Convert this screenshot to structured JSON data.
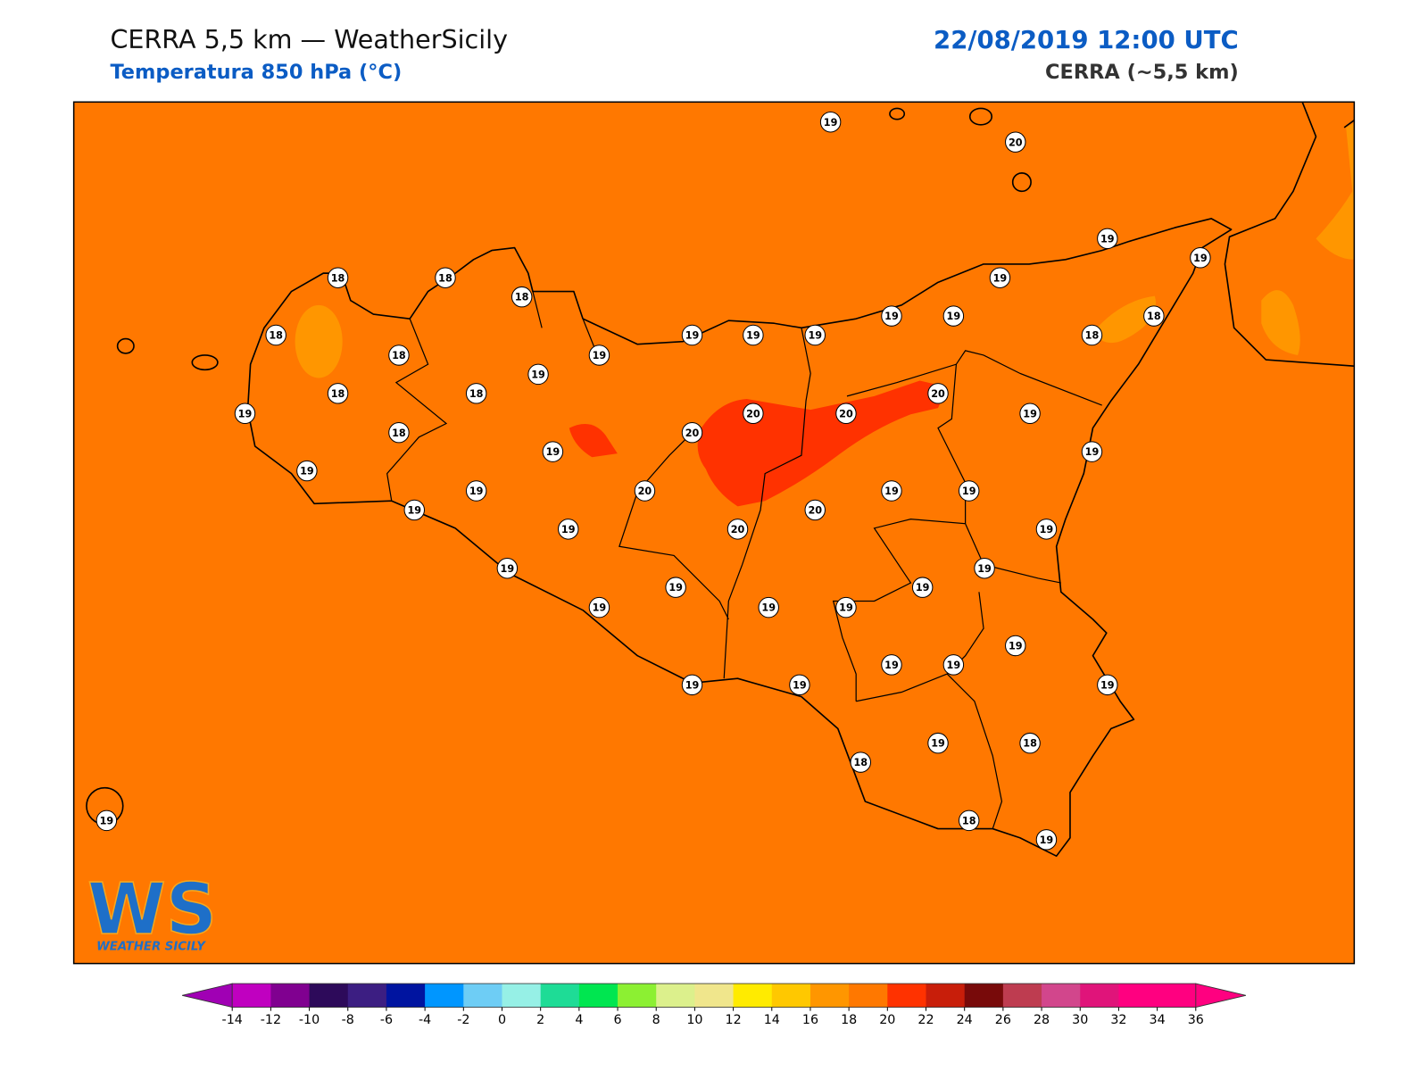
{
  "header": {
    "title": "CERRA 5,5 km — WeatherSicily",
    "subtitle": "Temperatura 850 hPa (°C)",
    "datetime": "22/08/2019 12:00 UTC",
    "model": "CERRA (~5,5 km)"
  },
  "stations": [
    19,
    20,
    19,
    19,
    18,
    18,
    18,
    19,
    19,
    19,
    18,
    18,
    18,
    18,
    19,
    19,
    19,
    19,
    19,
    18,
    18,
    19,
    20,
    20,
    20,
    19,
    18,
    20,
    19,
    19,
    19,
    19,
    20,
    19,
    19,
    20,
    19,
    19,
    20,
    19,
    19,
    19,
    19,
    19,
    19,
    19,
    19,
    19,
    19,
    19,
    19,
    19,
    19,
    19,
    18,
    18,
    18,
    19,
    19
  ],
  "colorbar": {
    "ticks": [
      -14,
      -12,
      -10,
      -8,
      -6,
      -4,
      -2,
      0,
      2,
      4,
      6,
      8,
      10,
      12,
      14,
      16,
      18,
      20,
      22,
      24,
      26,
      28,
      30,
      32,
      34,
      36
    ],
    "colors": [
      "#c000c0",
      "#800090",
      "#2d0a5a",
      "#3c1e82",
      "#0014a0",
      "#0096ff",
      "#6ecdf5",
      "#96f0e6",
      "#1edc96",
      "#00e650",
      "#8cf032",
      "#dcf08c",
      "#f0e68c",
      "#ffeb00",
      "#ffc800",
      "#ff9600",
      "#ff7800",
      "#ff3200",
      "#c81e0a",
      "#780a0a",
      "#be3c50",
      "#d2468c",
      "#e0147a",
      "#ff0080",
      "#ff0080"
    ],
    "under_color": "#a000b4",
    "over_color": "#ff0080"
  },
  "logo": {
    "mark": "WS",
    "text": "WEATHER SICILY"
  }
}
